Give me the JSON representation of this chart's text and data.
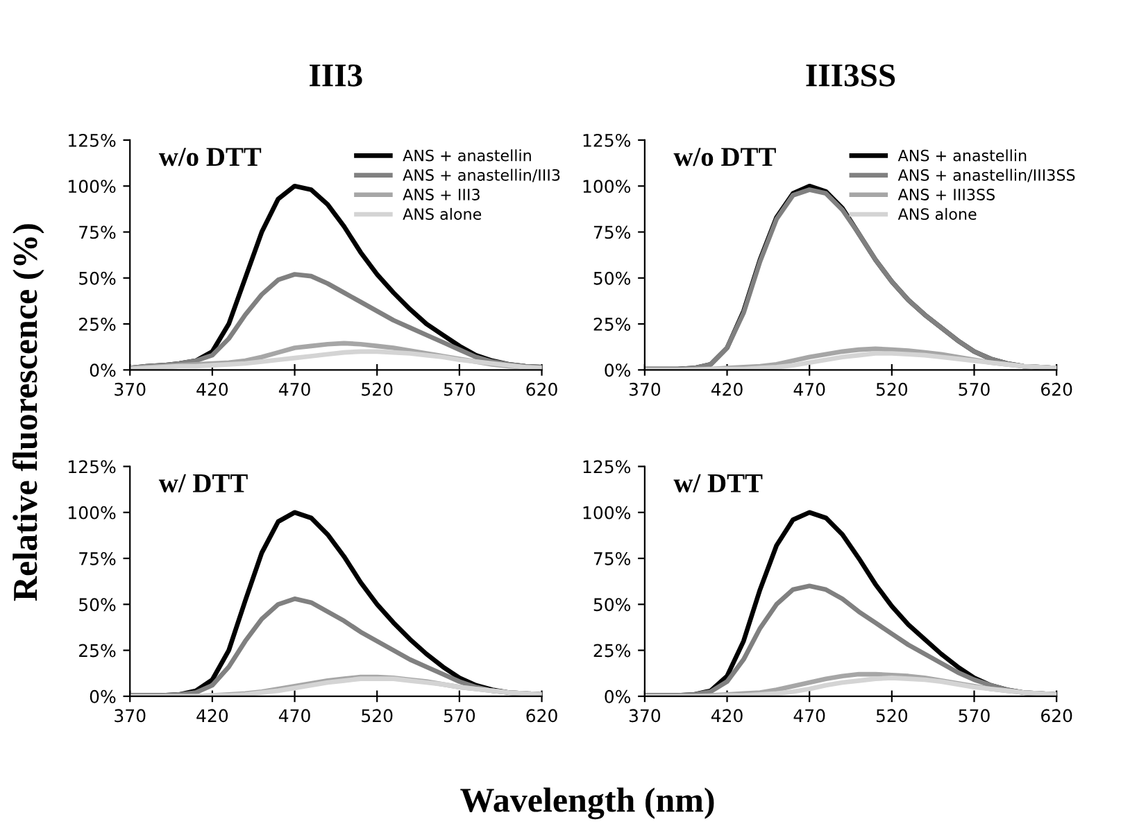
{
  "chart_data": [
    {
      "type": "line",
      "title": "III3",
      "ylabel": "Relative fluorescence (%)",
      "annotations": [
        "w/o DTT"
      ],
      "legend": "top right",
      "grid": false,
      "x": [
        370,
        380,
        390,
        400,
        410,
        420,
        430,
        440,
        450,
        460,
        470,
        480,
        490,
        500,
        510,
        520,
        530,
        540,
        550,
        560,
        570,
        580,
        590,
        600,
        610,
        620
      ],
      "xlim": [
        370,
        620
      ],
      "xticks": [
        370,
        420,
        470,
        520,
        570,
        620
      ],
      "ylim": [
        0,
        125
      ],
      "yticks": [
        {
          "value": 0,
          "label": "0%"
        },
        {
          "value": 25,
          "label": "25%"
        },
        {
          "value": 50,
          "label": "50%"
        },
        {
          "value": 75,
          "label": "75%"
        },
        {
          "value": 100,
          "label": "100%"
        },
        {
          "value": 125,
          "label": "125%"
        }
      ],
      "series": [
        {
          "name": "ANS + anastellin",
          "color": "#000000",
          "values": [
            1,
            2,
            2.5,
            3.5,
            5,
            10,
            25,
            50,
            75,
            93,
            100,
            98,
            90,
            78,
            64,
            52,
            42,
            33,
            25,
            19,
            13,
            8,
            5,
            3,
            2,
            1.5
          ]
        },
        {
          "name": "ANS + anastellin/III3",
          "color": "#808080",
          "values": [
            1,
            2,
            2.5,
            3.5,
            5,
            8,
            17,
            30,
            41,
            49,
            52,
            51,
            47,
            42,
            37,
            32,
            27,
            23,
            19,
            15,
            11,
            7,
            4.5,
            3,
            2,
            1.5
          ]
        },
        {
          "name": "ANS + III3",
          "color": "#a6a6a6",
          "values": [
            1,
            1.5,
            2,
            2.5,
            3,
            3.5,
            4,
            5,
            7,
            9.5,
            12,
            13,
            14,
            14.5,
            14,
            13,
            12,
            10.5,
            9,
            7.5,
            6,
            4.5,
            3,
            2,
            1.5,
            1
          ]
        },
        {
          "name": "ANS alone",
          "color": "#d4d4d4",
          "values": [
            0.5,
            1,
            1.5,
            2,
            2,
            2.5,
            3,
            3.5,
            4.5,
            5.5,
            6.5,
            7.5,
            8.5,
            9.5,
            10,
            10,
            9.5,
            9,
            8,
            7,
            5.5,
            4.5,
            3.5,
            2.5,
            1.5,
            1
          ]
        }
      ]
    },
    {
      "type": "line",
      "title": "III3SS",
      "annotations": [
        "w/o DTT"
      ],
      "legend": "top right",
      "grid": false,
      "x": [
        370,
        380,
        390,
        400,
        410,
        420,
        430,
        440,
        450,
        460,
        470,
        480,
        490,
        500,
        510,
        520,
        530,
        540,
        550,
        560,
        570,
        580,
        590,
        600,
        610,
        620
      ],
      "xlim": [
        370,
        620
      ],
      "xticks": [
        370,
        420,
        470,
        520,
        570,
        620
      ],
      "ylim": [
        0,
        125
      ],
      "yticks": [
        {
          "value": 0,
          "label": "0%"
        },
        {
          "value": 25,
          "label": "25%"
        },
        {
          "value": 50,
          "label": "50%"
        },
        {
          "value": 75,
          "label": "75%"
        },
        {
          "value": 100,
          "label": "100%"
        },
        {
          "value": 125,
          "label": "125%"
        }
      ],
      "series": [
        {
          "name": "ANS + anastellin",
          "color": "#000000",
          "values": [
            0.5,
            0.5,
            0.5,
            1,
            3,
            12,
            32,
            60,
            83,
            96,
            100,
            97,
            88,
            74,
            60,
            48,
            38,
            30,
            23,
            16,
            10,
            6,
            3.5,
            2,
            1.5,
            1
          ]
        },
        {
          "name": "ANS + anastellin/III3SS",
          "color": "#808080",
          "values": [
            0.5,
            0.5,
            0.5,
            1,
            3,
            12,
            31,
            59,
            82,
            95,
            98,
            96,
            87,
            74,
            60,
            48,
            38,
            30,
            23,
            16,
            10,
            6,
            3.5,
            2,
            1.5,
            1
          ]
        },
        {
          "name": "ANS + III3SS",
          "color": "#a6a6a6",
          "values": [
            0,
            0,
            0,
            0.5,
            0.5,
            1,
            1.5,
            2,
            3,
            5,
            7,
            8.5,
            10,
            11,
            11.5,
            11,
            10.5,
            9.5,
            8.5,
            7,
            5.5,
            4,
            3,
            2,
            1.5,
            1
          ]
        },
        {
          "name": "ANS alone",
          "color": "#d4d4d4",
          "values": [
            0,
            0,
            0,
            0,
            0.5,
            0.5,
            0.5,
            1,
            1.5,
            2.5,
            4,
            5.5,
            7,
            8,
            9,
            9,
            8.5,
            8,
            7,
            6,
            5,
            4,
            3,
            2,
            1.5,
            1
          ]
        }
      ]
    },
    {
      "type": "line",
      "xlabel": "Wavelength (nm)",
      "annotations": [
        "w/ DTT"
      ],
      "grid": false,
      "x": [
        370,
        380,
        390,
        400,
        410,
        420,
        430,
        440,
        450,
        460,
        470,
        480,
        490,
        500,
        510,
        520,
        530,
        540,
        550,
        560,
        570,
        580,
        590,
        600,
        610,
        620
      ],
      "xlim": [
        370,
        620
      ],
      "xticks": [
        370,
        420,
        470,
        520,
        570,
        620
      ],
      "ylim": [
        0,
        125
      ],
      "yticks": [
        {
          "value": 0,
          "label": "0%"
        },
        {
          "value": 25,
          "label": "25%"
        },
        {
          "value": 50,
          "label": "50%"
        },
        {
          "value": 75,
          "label": "75%"
        },
        {
          "value": 100,
          "label": "100%"
        },
        {
          "value": 125,
          "label": "125%"
        }
      ],
      "series": [
        {
          "color": "#000000",
          "values": [
            0.5,
            0.5,
            0.5,
            1,
            3,
            9,
            25,
            52,
            78,
            95,
            100,
            97,
            88,
            76,
            62,
            50,
            40,
            31,
            23,
            16,
            10,
            6,
            3.5,
            2,
            1.5,
            1
          ]
        },
        {
          "color": "#808080",
          "values": [
            0.5,
            0.5,
            0.5,
            1,
            2,
            6,
            16,
            30,
            42,
            50,
            53,
            51,
            46,
            41,
            35,
            30,
            25,
            20,
            16,
            12,
            8,
            5,
            3,
            2,
            1.5,
            1
          ]
        },
        {
          "color": "#a6a6a6",
          "values": [
            0,
            0,
            0,
            0,
            0,
            0.5,
            1,
            1.5,
            2.5,
            4,
            5.5,
            7,
            8.5,
            9.5,
            10.5,
            10.5,
            10,
            9,
            8,
            6.5,
            5,
            4,
            3,
            2,
            1.5,
            1
          ]
        },
        {
          "color": "#d4d4d4",
          "values": [
            0,
            0,
            0,
            0,
            0,
            0.5,
            0.5,
            1,
            2,
            3,
            4.5,
            6,
            7.5,
            8.5,
            9.5,
            9.5,
            9.5,
            8.5,
            7.5,
            6.5,
            5,
            4,
            3,
            2,
            1.5,
            1
          ]
        }
      ]
    },
    {
      "type": "line",
      "annotations": [
        "w/ DTT"
      ],
      "grid": false,
      "x": [
        370,
        380,
        390,
        400,
        410,
        420,
        430,
        440,
        450,
        460,
        470,
        480,
        490,
        500,
        510,
        520,
        530,
        540,
        550,
        560,
        570,
        580,
        590,
        600,
        610,
        620
      ],
      "xlim": [
        370,
        620
      ],
      "xticks": [
        370,
        420,
        470,
        520,
        570,
        620
      ],
      "ylim": [
        0,
        125
      ],
      "yticks": [
        {
          "value": 0,
          "label": "0%"
        },
        {
          "value": 25,
          "label": "25%"
        },
        {
          "value": 50,
          "label": "50%"
        },
        {
          "value": 75,
          "label": "75%"
        },
        {
          "value": 100,
          "label": "100%"
        },
        {
          "value": 125,
          "label": "125%"
        }
      ],
      "series": [
        {
          "color": "#000000",
          "values": [
            0.5,
            0.5,
            0.5,
            1,
            3,
            11,
            30,
            58,
            82,
            96,
            100,
            97,
            88,
            75,
            61,
            49,
            39,
            31,
            23,
            16,
            10,
            6,
            3.5,
            2,
            1.5,
            1
          ]
        },
        {
          "color": "#808080",
          "values": [
            0.5,
            0.5,
            0.5,
            1,
            2.5,
            8,
            20,
            37,
            50,
            58,
            60,
            58,
            53,
            46,
            40,
            34,
            28,
            23,
            18,
            13,
            9,
            6,
            3.5,
            2,
            1.5,
            1
          ]
        },
        {
          "color": "#a6a6a6",
          "values": [
            0,
            0,
            0,
            0,
            0.5,
            1,
            1.5,
            2,
            3.5,
            5.5,
            7.5,
            9.5,
            11,
            12,
            12,
            11.5,
            11,
            10,
            8.5,
            7,
            5.5,
            4,
            3,
            2,
            1.5,
            1
          ]
        },
        {
          "color": "#d4d4d4",
          "values": [
            0,
            0,
            0,
            0,
            0,
            0.5,
            0.5,
            1,
            1.5,
            2.5,
            4,
            6,
            7.5,
            8.5,
            9.5,
            10,
            9.5,
            9,
            8,
            6.5,
            5,
            4,
            3,
            2,
            1.5,
            1
          ]
        }
      ]
    }
  ]
}
